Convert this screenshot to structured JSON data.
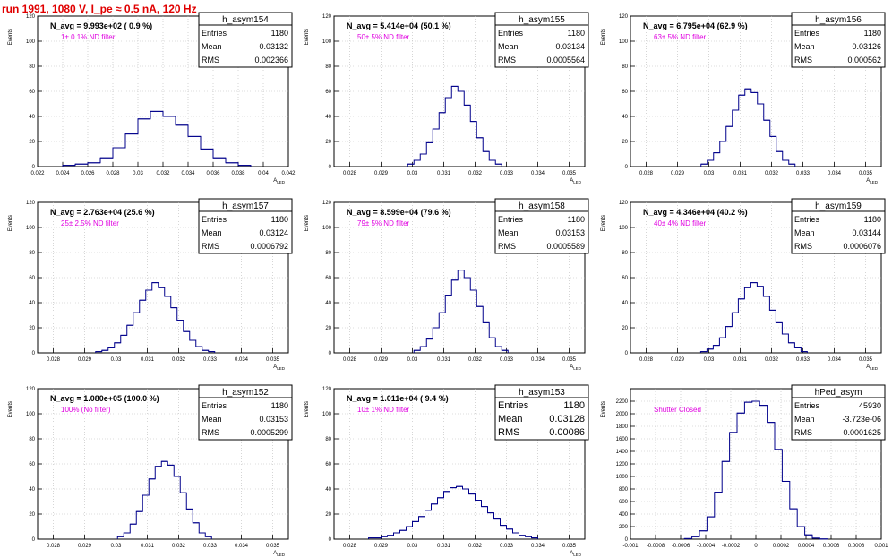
{
  "run_title": "run 1991,  1080 V, I_pe ≈ 0.5 nA, 120 Hz",
  "colors": {
    "title": "#e00000",
    "hist": "#00008b",
    "annotation": "#e000e0",
    "grid": "#bbbbbb"
  },
  "chart_data": [
    {
      "type": "histogram",
      "name": "h_asym154",
      "ylabel": "Events",
      "xlabel": "A_LED",
      "navg": "N_avg = 9.993e+02 ( 0.9 %)",
      "filter": "1± 0.1% ND filter",
      "stats": {
        "Entries": "1180",
        "Mean": "0.03132",
        "RMS": "0.002366"
      },
      "xlim": [
        0.022,
        0.042
      ],
      "ylim": [
        0,
        120
      ],
      "xticks": [
        "0.022",
        "0.024",
        "0.026",
        "0.028",
        "0.03",
        "0.032",
        "0.034",
        "0.036",
        "0.038",
        "0.04",
        "0.042"
      ],
      "yticks": [
        "0",
        "20",
        "40",
        "60",
        "80",
        "100",
        "120"
      ],
      "peak": 45,
      "center": 0.0313,
      "sigma": 0.0023,
      "x": [
        0.0245,
        0.0255,
        0.0265,
        0.0275,
        0.0285,
        0.0295,
        0.0305,
        0.0315,
        0.0325,
        0.0335,
        0.0345,
        0.0355,
        0.0365,
        0.0375,
        0.0385
      ],
      "y": [
        1,
        2,
        3,
        7,
        15,
        26,
        38,
        44,
        40,
        33,
        24,
        14,
        7,
        3,
        1
      ]
    },
    {
      "type": "histogram",
      "name": "h_asym155",
      "ylabel": "Events",
      "xlabel": "A_LED",
      "navg": "N_avg = 5.414e+04 (50.1 %)",
      "filter": "50± 5% ND filter",
      "stats": {
        "Entries": "1180",
        "Mean": "0.03134",
        "RMS": "0.0005564"
      },
      "xlim": [
        0.0275,
        0.0355
      ],
      "ylim": [
        0,
        120
      ],
      "xticks": [
        "0.028",
        "0.029",
        "0.03",
        "0.031",
        "0.032",
        "0.033",
        "0.034",
        "0.035"
      ],
      "yticks": [
        "0",
        "20",
        "40",
        "60",
        "80",
        "100",
        "120"
      ],
      "peak": 66,
      "center": 0.03134,
      "sigma": 0.00056,
      "x": [
        0.02995,
        0.03015,
        0.03035,
        0.03055,
        0.03075,
        0.03095,
        0.03115,
        0.03135,
        0.03155,
        0.03175,
        0.03195,
        0.03215,
        0.03235,
        0.03255,
        0.03275
      ],
      "y": [
        2,
        5,
        10,
        19,
        30,
        43,
        55,
        64,
        60,
        49,
        36,
        23,
        12,
        5,
        2
      ]
    },
    {
      "type": "histogram",
      "name": "h_asym156",
      "ylabel": "Events",
      "xlabel": "A_LED",
      "navg": "N_avg = 6.795e+04 (62.9 %)",
      "filter": "63± 5% ND filter",
      "stats": {
        "Entries": "1180",
        "Mean": "0.03126",
        "RMS": "0.000562"
      },
      "xlim": [
        0.0275,
        0.0355
      ],
      "ylim": [
        0,
        120
      ],
      "xticks": [
        "0.028",
        "0.029",
        "0.03",
        "0.031",
        "0.032",
        "0.033",
        "0.034",
        "0.035"
      ],
      "yticks": [
        "0",
        "20",
        "40",
        "60",
        "80",
        "100",
        "120"
      ],
      "peak": 70,
      "center": 0.03126,
      "sigma": 0.00056,
      "x": [
        0.02985,
        0.03005,
        0.03025,
        0.03045,
        0.03065,
        0.03085,
        0.03105,
        0.03125,
        0.03145,
        0.03165,
        0.03185,
        0.03205,
        0.03225,
        0.03245,
        0.03265
      ],
      "y": [
        2,
        5,
        11,
        20,
        32,
        45,
        57,
        62,
        59,
        50,
        37,
        24,
        12,
        5,
        2
      ]
    },
    {
      "type": "histogram",
      "name": "h_asym157",
      "ylabel": "Events",
      "xlabel": "A_LED",
      "navg": "N_avg = 2.763e+04 (25.6 %)",
      "filter": "25± 2.5% ND filter",
      "stats": {
        "Entries": "1180",
        "Mean": "0.03124",
        "RMS": "0.0006792"
      },
      "xlim": [
        0.0275,
        0.0355
      ],
      "ylim": [
        0,
        120
      ],
      "xticks": [
        "0.028",
        "0.029",
        "0.03",
        "0.031",
        "0.032",
        "0.033",
        "0.034",
        "0.035"
      ],
      "yticks": [
        "0",
        "20",
        "40",
        "60",
        "80",
        "100",
        "120"
      ],
      "peak": 60,
      "center": 0.03124,
      "sigma": 0.00068,
      "x": [
        0.02945,
        0.02965,
        0.02985,
        0.03005,
        0.03025,
        0.03045,
        0.03065,
        0.03085,
        0.03105,
        0.03125,
        0.03145,
        0.03165,
        0.03185,
        0.03205,
        0.03225,
        0.03245,
        0.03265,
        0.03285,
        0.03305
      ],
      "y": [
        1,
        2,
        4,
        8,
        14,
        22,
        32,
        42,
        50,
        56,
        52,
        45,
        36,
        26,
        17,
        10,
        5,
        2,
        1
      ]
    },
    {
      "type": "histogram",
      "name": "h_asym158",
      "ylabel": "Events",
      "xlabel": "A_LED",
      "navg": "N_avg = 8.599e+04 (79.6 %)",
      "filter": "79± 5% ND filter",
      "stats": {
        "Entries": "1180",
        "Mean": "0.03153",
        "RMS": "0.0005589"
      },
      "xlim": [
        0.0275,
        0.0355
      ],
      "ylim": [
        0,
        120
      ],
      "xticks": [
        "0.028",
        "0.029",
        "0.03",
        "0.031",
        "0.032",
        "0.033",
        "0.034",
        "0.035"
      ],
      "yticks": [
        "0",
        "20",
        "40",
        "60",
        "80",
        "100",
        "120"
      ],
      "peak": 80,
      "center": 0.03153,
      "sigma": 0.00056,
      "x": [
        0.03015,
        0.03035,
        0.03055,
        0.03075,
        0.03095,
        0.03115,
        0.03135,
        0.03155,
        0.03175,
        0.03195,
        0.03215,
        0.03235,
        0.03255,
        0.03275,
        0.03295
      ],
      "y": [
        2,
        5,
        11,
        20,
        32,
        46,
        58,
        66,
        60,
        50,
        37,
        24,
        12,
        5,
        2
      ]
    },
    {
      "type": "histogram",
      "name": "h_asym159",
      "ylabel": "Events",
      "xlabel": "A_LED",
      "navg": "N_avg = 4.346e+04 (40.2 %)",
      "filter": "40± 4% ND filter",
      "stats": {
        "Entries": "1180",
        "Mean": "0.03144",
        "RMS": "0.0006076"
      },
      "xlim": [
        0.0275,
        0.0355
      ],
      "ylim": [
        0,
        120
      ],
      "xticks": [
        "0.028",
        "0.029",
        "0.03",
        "0.031",
        "0.032",
        "0.033",
        "0.034",
        "0.035"
      ],
      "yticks": [
        "0",
        "20",
        "40",
        "60",
        "80",
        "100",
        "120"
      ],
      "peak": 60,
      "center": 0.03144,
      "sigma": 0.00061,
      "x": [
        0.02984,
        0.03004,
        0.03024,
        0.03044,
        0.03064,
        0.03084,
        0.03104,
        0.03124,
        0.03144,
        0.03164,
        0.03184,
        0.03204,
        0.03224,
        0.03244,
        0.03264,
        0.03284,
        0.03304
      ],
      "y": [
        1,
        3,
        6,
        12,
        21,
        32,
        43,
        52,
        56,
        53,
        45,
        34,
        24,
        15,
        8,
        4,
        1
      ]
    },
    {
      "type": "histogram",
      "name": "h_asym152",
      "ylabel": "Events",
      "xlabel": "A_LED",
      "navg": "N_avg = 1.080e+05 (100.0 %)",
      "filter": "100% (No filter)",
      "stats": {
        "Entries": "1180",
        "Mean": "0.03153",
        "RMS": "0.0005299"
      },
      "xlim": [
        0.0275,
        0.0355
      ],
      "ylim": [
        0,
        120
      ],
      "xticks": [
        "0.028",
        "0.029",
        "0.03",
        "0.031",
        "0.032",
        "0.033",
        "0.034",
        "0.035"
      ],
      "yticks": [
        "0",
        "20",
        "40",
        "60",
        "80",
        "100",
        "120"
      ],
      "peak": 70,
      "center": 0.03153,
      "sigma": 0.00053,
      "x": [
        0.03015,
        0.03035,
        0.03055,
        0.03075,
        0.03095,
        0.03115,
        0.03135,
        0.03155,
        0.03175,
        0.03195,
        0.03215,
        0.03235,
        0.03255,
        0.03275,
        0.03295
      ],
      "y": [
        2,
        5,
        12,
        22,
        35,
        48,
        58,
        62,
        59,
        50,
        37,
        24,
        13,
        5,
        2
      ]
    },
    {
      "type": "histogram",
      "name": "h_asym153",
      "ylabel": "Events",
      "xlabel": "A_LED",
      "navg": "N_avg = 1.011e+04 ( 9.4 %)",
      "filter": "10± 1% ND filter",
      "stats": {
        "Entries": "1180",
        "Mean": "0.03128",
        "RMS": "0.00086"
      },
      "statsLarge": true,
      "xlim": [
        0.0275,
        0.0355
      ],
      "ylim": [
        0,
        120
      ],
      "xticks": [
        "0.028",
        "0.029",
        "0.03",
        "0.031",
        "0.032",
        "0.033",
        "0.034",
        "0.035"
      ],
      "yticks": [
        "0",
        "20",
        "40",
        "60",
        "80",
        "100",
        "120"
      ],
      "peak": 50,
      "center": 0.03128,
      "sigma": 0.00086,
      "x": [
        0.0287,
        0.0289,
        0.0291,
        0.0293,
        0.0295,
        0.0297,
        0.0299,
        0.0301,
        0.0303,
        0.0305,
        0.0307,
        0.0309,
        0.0311,
        0.0313,
        0.0315,
        0.0317,
        0.0319,
        0.0321,
        0.0323,
        0.0325,
        0.0327,
        0.0329,
        0.0331,
        0.0333,
        0.0335,
        0.0337,
        0.0339
      ],
      "y": [
        1,
        1,
        2,
        3,
        5,
        7,
        10,
        14,
        18,
        23,
        28,
        33,
        38,
        41,
        42,
        40,
        36,
        31,
        26,
        21,
        16,
        11,
        8,
        5,
        3,
        2,
        1
      ]
    },
    {
      "type": "histogram",
      "name": "hPed_asym",
      "ylabel": "Events",
      "xlabel": "",
      "navg": "",
      "filter": "Shutter Closed",
      "stats": {
        "Entries": "45930",
        "Mean": "-3.723e-06",
        "RMS": "0.0001625"
      },
      "xlim": [
        -0.001,
        0.001
      ],
      "ylim": [
        0,
        2400
      ],
      "xticks": [
        "-0.001",
        "-0.0008",
        "-0.0006",
        "-0.0004",
        "-0.0002",
        "0",
        "0.0002",
        "0.0004",
        "0.0006",
        "0.0008",
        "0.001"
      ],
      "yticks": [
        "0",
        "200",
        "400",
        "600",
        "800",
        "1000",
        "1200",
        "1400",
        "1600",
        "1800",
        "2000",
        "2200"
      ],
      "peak": 2200,
      "center": -3.7e-06,
      "sigma": 0.0001625,
      "x": [
        -0.00054,
        -0.00048,
        -0.00042,
        -0.00036,
        -0.0003,
        -0.00024,
        -0.00018,
        -0.00012,
        -6e-05,
        0,
        6e-05,
        0.00012,
        0.00018,
        0.00024,
        0.0003,
        0.00036,
        0.00042,
        0.00048,
        0.00054
      ],
      "y": [
        9,
        39,
        133,
        356,
        748,
        1239,
        1702,
        2010,
        2184,
        2200,
        2134,
        1862,
        1431,
        922,
        484,
        200,
        68,
        16,
        3
      ]
    }
  ]
}
